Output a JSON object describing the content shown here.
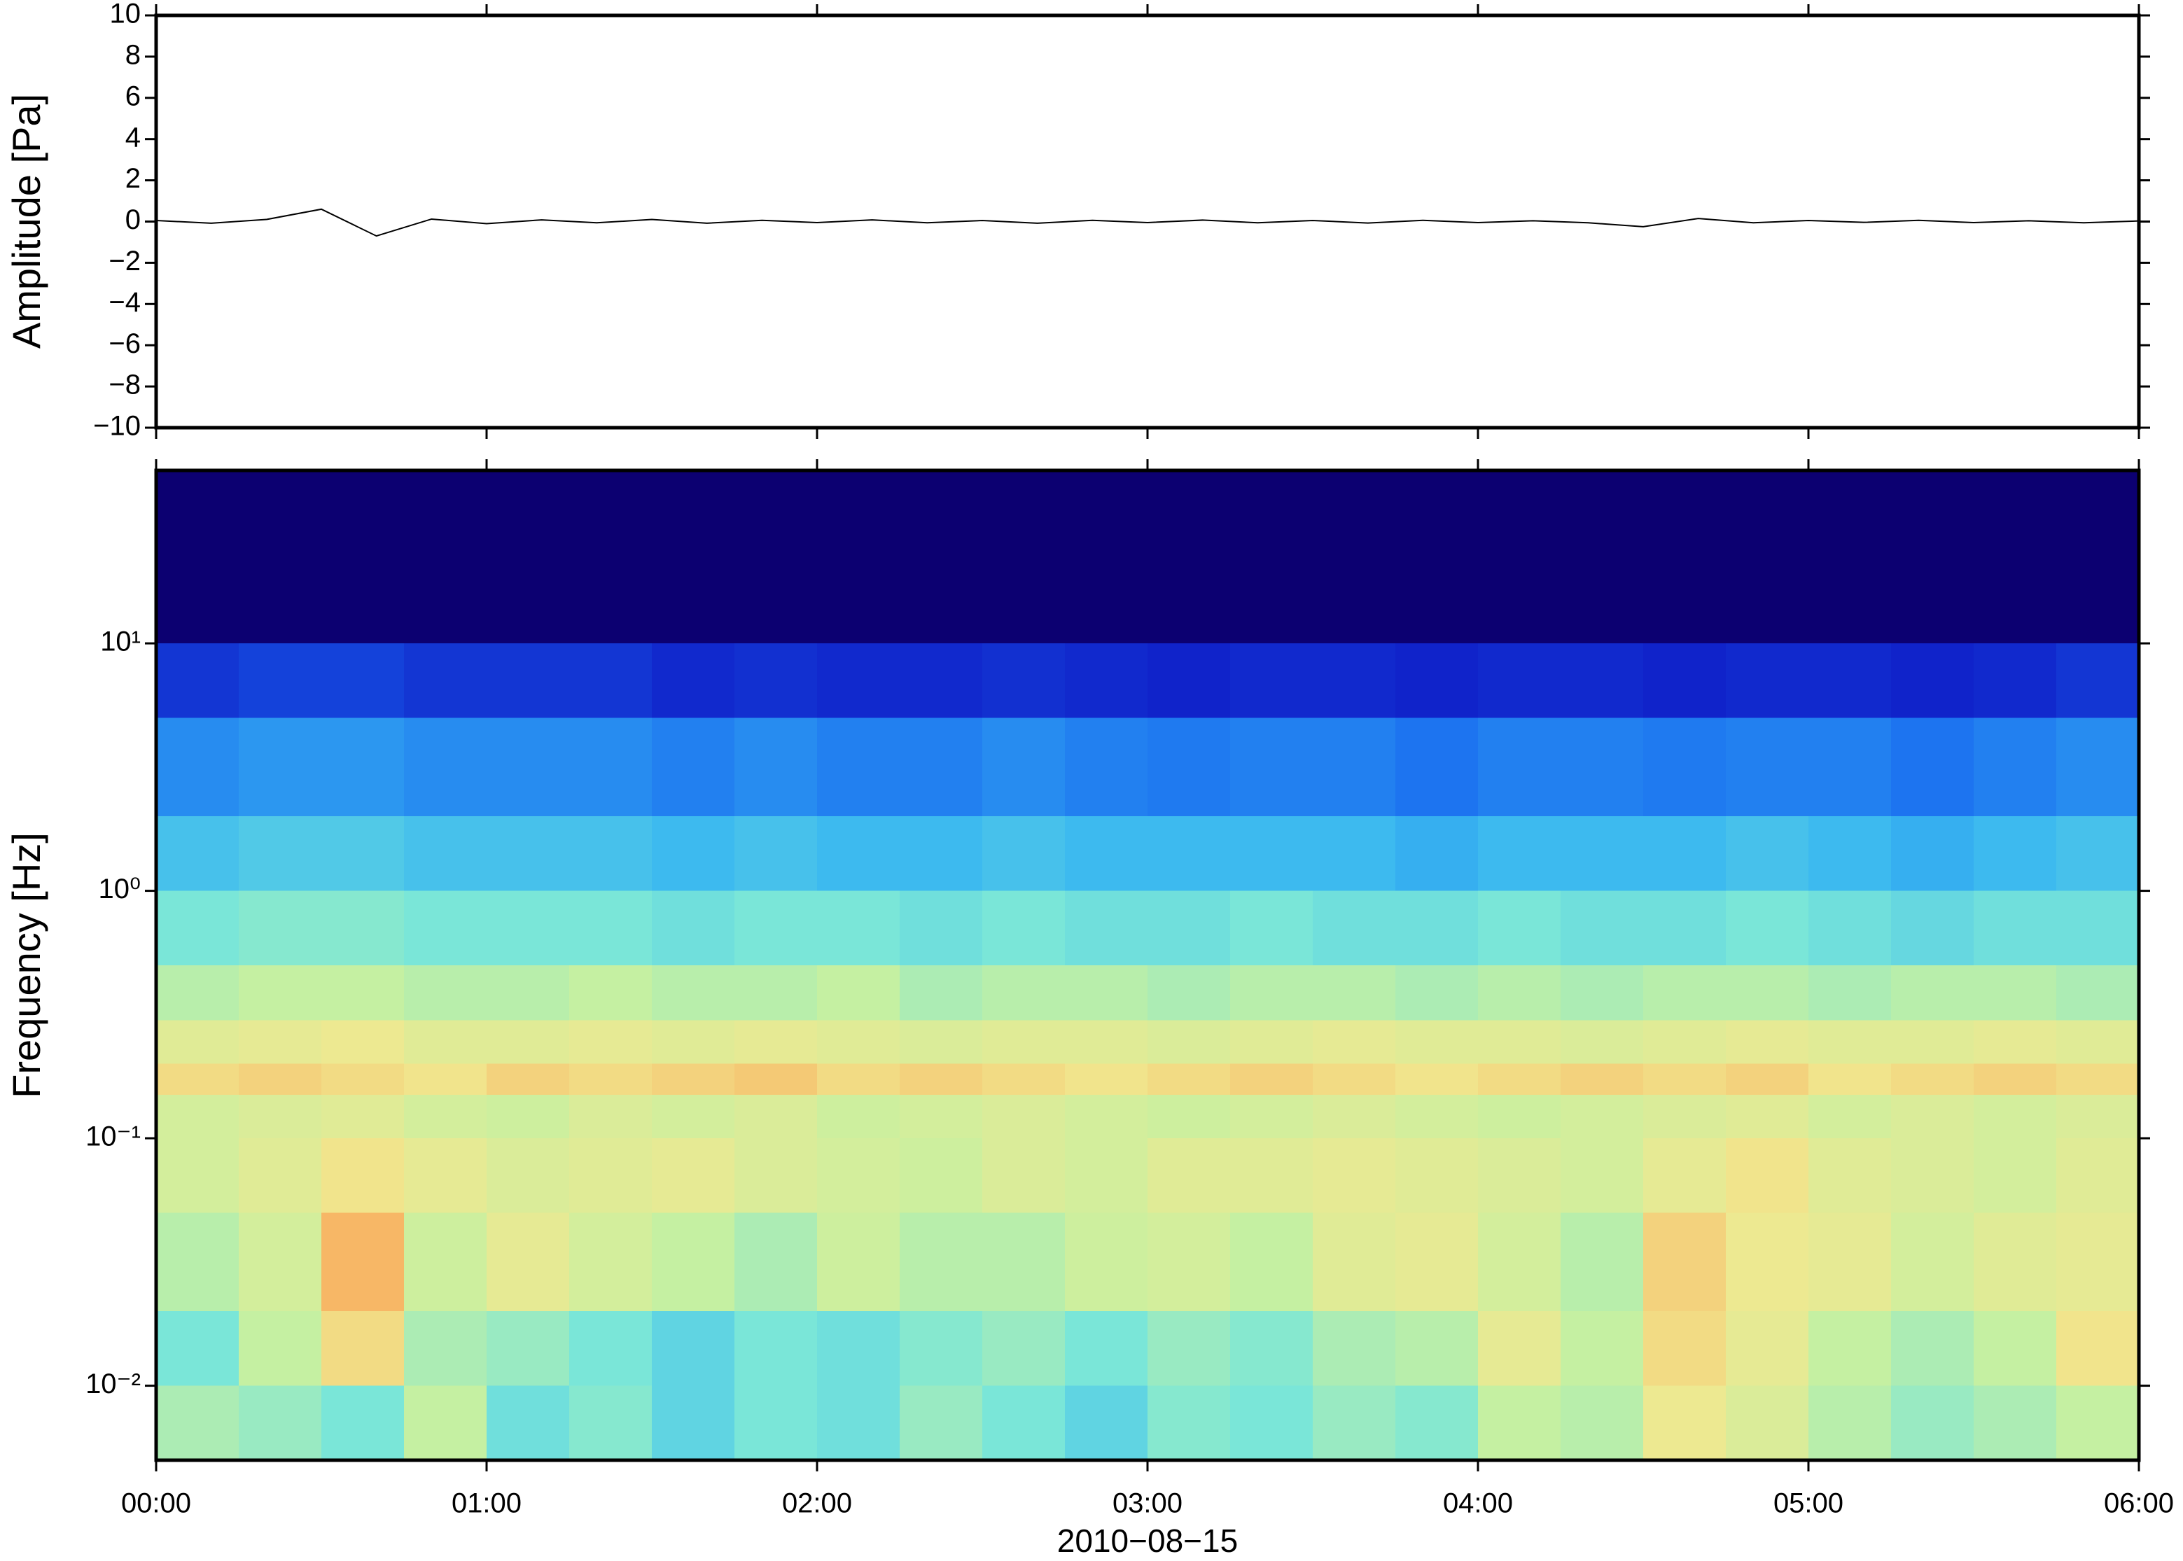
{
  "chart_data": [
    {
      "type": "line",
      "ylabel": "Amplitude [Pa]",
      "ylim": [
        -10,
        10
      ],
      "yticks": [
        {
          "value": -10,
          "label": "−10"
        },
        {
          "value": -8,
          "label": "−8"
        },
        {
          "value": -6,
          "label": "−6"
        },
        {
          "value": -4,
          "label": "−4"
        },
        {
          "value": -2,
          "label": "−2"
        },
        0,
        2,
        4,
        6,
        8,
        10
      ],
      "color": "#000000",
      "x": [
        "00:00",
        "00:10",
        "00:20",
        "00:30",
        "00:40",
        "00:50",
        "01:00",
        "01:10",
        "01:20",
        "01:30",
        "01:40",
        "01:50",
        "02:00",
        "02:10",
        "02:20",
        "02:30",
        "02:40",
        "02:50",
        "03:00",
        "03:10",
        "03:20",
        "03:30",
        "03:40",
        "03:50",
        "04:00",
        "04:10",
        "04:20",
        "04:30",
        "04:40",
        "04:50",
        "05:00",
        "05:10",
        "05:20",
        "05:30",
        "05:40",
        "05:50",
        "06:00"
      ],
      "values": [
        0.05,
        -0.08,
        0.1,
        0.6,
        -0.7,
        0.12,
        -0.1,
        0.08,
        -0.06,
        0.1,
        -0.08,
        0.06,
        -0.05,
        0.08,
        -0.06,
        0.05,
        -0.08,
        0.06,
        -0.05,
        0.07,
        -0.06,
        0.05,
        -0.07,
        0.06,
        -0.05,
        0.04,
        -0.06,
        -0.25,
        0.15,
        -0.06,
        0.05,
        -0.04,
        0.06,
        -0.05,
        0.04,
        -0.06,
        0.03
      ]
    },
    {
      "type": "heatmap",
      "ylabel": "Frequency [Hz]",
      "xlabel": "2010−08−15",
      "yscale": "log",
      "xlim": [
        "00:00",
        "06:00"
      ],
      "xticks": [
        "00:00",
        "01:00",
        "02:00",
        "03:00",
        "04:00",
        "05:00",
        "06:00"
      ],
      "ylim": [
        0.005,
        50
      ],
      "yticks": [
        {
          "value": 0.01,
          "label": "10⁻²"
        },
        {
          "value": 0.1,
          "label": "10⁻¹"
        },
        {
          "value": 1,
          "label": "10⁰"
        },
        {
          "value": 10,
          "label": "10¹"
        }
      ],
      "colormap": [
        "#0c0071",
        "#1020c8",
        "#1a6ef0",
        "#3ab8f0",
        "#7ae6d8",
        "#c8f0a0",
        "#f0e890",
        "#f8b060",
        "#e84a30"
      ],
      "x": [
        "00:00",
        "00:15",
        "00:30",
        "00:45",
        "01:00",
        "01:15",
        "01:30",
        "01:45",
        "02:00",
        "02:15",
        "02:30",
        "02:45",
        "03:00",
        "03:15",
        "03:30",
        "03:45",
        "04:00",
        "04:15",
        "04:30",
        "04:45",
        "05:00",
        "05:15",
        "05:30",
        "05:45",
        "06:00"
      ],
      "y": [
        0.005,
        0.01,
        0.02,
        0.05,
        0.1,
        0.15,
        0.2,
        0.3,
        0.5,
        1,
        2,
        5,
        10,
        50
      ],
      "z": [
        [
          0.58,
          0.55,
          0.5,
          0.62,
          0.48,
          0.52,
          0.45,
          0.5,
          0.48,
          0.55,
          0.5,
          0.45,
          0.52,
          0.5,
          0.55,
          0.52,
          0.62,
          0.6,
          0.74,
          0.68,
          0.6,
          0.55,
          0.58,
          0.62
        ],
        [
          0.5,
          0.62,
          0.78,
          0.58,
          0.55,
          0.5,
          0.45,
          0.5,
          0.48,
          0.52,
          0.55,
          0.5,
          0.55,
          0.52,
          0.58,
          0.6,
          0.72,
          0.62,
          0.78,
          0.72,
          0.62,
          0.58,
          0.62,
          0.76
        ],
        [
          0.6,
          0.66,
          0.86,
          0.64,
          0.72,
          0.66,
          0.62,
          0.58,
          0.64,
          0.6,
          0.6,
          0.64,
          0.66,
          0.62,
          0.7,
          0.72,
          0.66,
          0.6,
          0.8,
          0.74,
          0.72,
          0.66,
          0.7,
          0.72
        ],
        [
          0.66,
          0.7,
          0.76,
          0.72,
          0.68,
          0.7,
          0.72,
          0.68,
          0.66,
          0.64,
          0.68,
          0.66,
          0.7,
          0.7,
          0.72,
          0.7,
          0.68,
          0.66,
          0.72,
          0.76,
          0.7,
          0.68,
          0.66,
          0.7
        ],
        [
          0.66,
          0.68,
          0.7,
          0.66,
          0.64,
          0.68,
          0.66,
          0.68,
          0.64,
          0.66,
          0.68,
          0.66,
          0.64,
          0.66,
          0.68,
          0.66,
          0.64,
          0.66,
          0.68,
          0.7,
          0.66,
          0.68,
          0.66,
          0.68
        ],
        [
          0.78,
          0.8,
          0.78,
          0.76,
          0.8,
          0.78,
          0.8,
          0.82,
          0.78,
          0.8,
          0.78,
          0.76,
          0.78,
          0.8,
          0.78,
          0.76,
          0.78,
          0.8,
          0.78,
          0.8,
          0.76,
          0.78,
          0.8,
          0.78
        ],
        [
          0.7,
          0.72,
          0.74,
          0.7,
          0.7,
          0.72,
          0.7,
          0.72,
          0.7,
          0.68,
          0.7,
          0.7,
          0.68,
          0.7,
          0.72,
          0.7,
          0.7,
          0.68,
          0.7,
          0.72,
          0.7,
          0.7,
          0.72,
          0.7
        ],
        [
          0.6,
          0.62,
          0.62,
          0.6,
          0.6,
          0.62,
          0.6,
          0.6,
          0.62,
          0.58,
          0.6,
          0.6,
          0.58,
          0.6,
          0.6,
          0.58,
          0.6,
          0.58,
          0.6,
          0.6,
          0.58,
          0.6,
          0.6,
          0.58
        ],
        [
          0.5,
          0.52,
          0.52,
          0.5,
          0.5,
          0.5,
          0.48,
          0.5,
          0.5,
          0.48,
          0.5,
          0.48,
          0.48,
          0.5,
          0.48,
          0.48,
          0.5,
          0.48,
          0.48,
          0.5,
          0.48,
          0.46,
          0.48,
          0.48
        ],
        [
          0.4,
          0.42,
          0.42,
          0.4,
          0.4,
          0.4,
          0.38,
          0.4,
          0.38,
          0.38,
          0.4,
          0.38,
          0.38,
          0.38,
          0.38,
          0.36,
          0.38,
          0.38,
          0.38,
          0.4,
          0.38,
          0.36,
          0.38,
          0.4
        ],
        [
          0.3,
          0.32,
          0.32,
          0.3,
          0.3,
          0.3,
          0.28,
          0.3,
          0.28,
          0.28,
          0.3,
          0.28,
          0.27,
          0.28,
          0.28,
          0.26,
          0.28,
          0.28,
          0.27,
          0.28,
          0.28,
          0.26,
          0.28,
          0.3
        ],
        [
          0.16,
          0.18,
          0.18,
          0.16,
          0.16,
          0.16,
          0.14,
          0.15,
          0.14,
          0.14,
          0.15,
          0.14,
          0.13,
          0.14,
          0.14,
          0.13,
          0.14,
          0.14,
          0.13,
          0.14,
          0.14,
          0.13,
          0.14,
          0.16
        ],
        [
          0,
          0,
          0,
          0,
          0,
          0,
          0,
          0,
          0,
          0,
          0,
          0,
          0,
          0,
          0,
          0,
          0,
          0,
          0,
          0,
          0,
          0,
          0,
          0
        ]
      ]
    }
  ]
}
